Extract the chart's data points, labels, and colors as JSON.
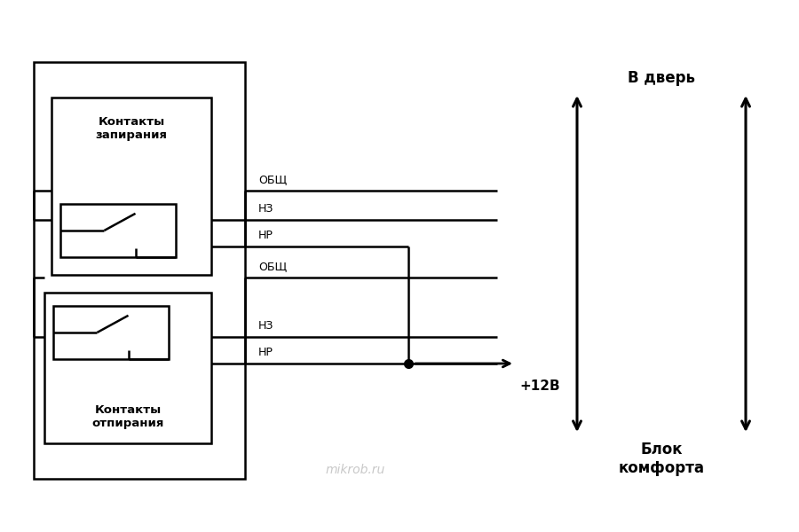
{
  "bg_color": "#ffffff",
  "line_color": "#000000",
  "watermark_text": "mikrob.ru",
  "watermark_color": "#bbbbbb",
  "label_obsh1": "ОБЩ",
  "label_nz1": "НЗ",
  "label_nr1": "НР",
  "label_obsh2": "ОБЩ",
  "label_nz2": "НЗ",
  "label_nr2": "НР",
  "label_12v": "+12В",
  "label_vdver": "В дверь",
  "label_blok": "Блок\nкомфорта",
  "label_kontakty_zap": "Контакты\nзапирания",
  "label_kontakty_otp": "Контакты\nотпирания",
  "figsize": [
    9.0,
    6.0
  ],
  "dpi": 100
}
